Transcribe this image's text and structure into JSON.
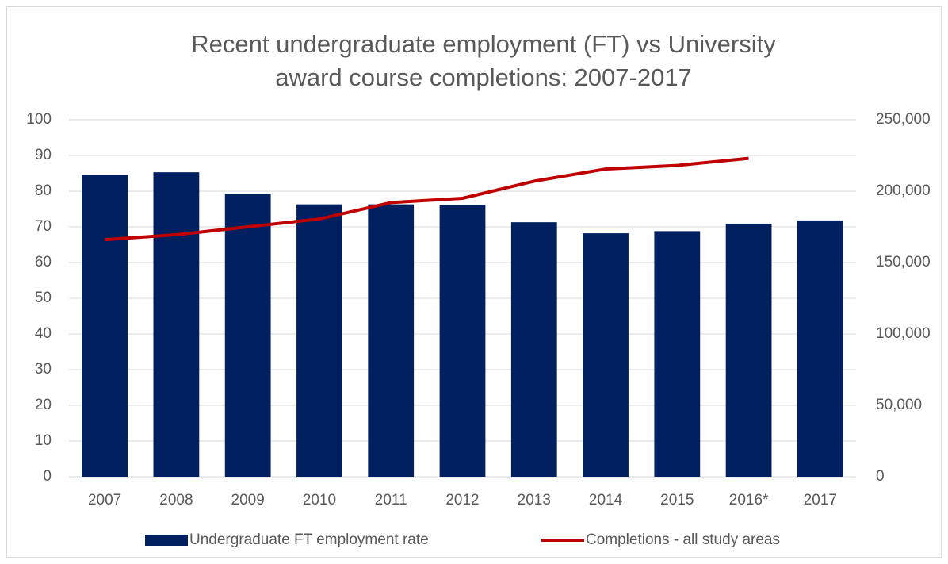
{
  "chart_data": {
    "type": "bar-line",
    "title": [
      "Recent undergraduate employment (FT) vs University",
      "award course completions: 2007-2017"
    ],
    "categories": [
      "2007",
      "2008",
      "2009",
      "2010",
      "2011",
      "2012",
      "2013",
      "2014",
      "2015",
      "2016*",
      "2017"
    ],
    "series": [
      {
        "name": "Undergraduate FT employment rate",
        "type": "bar",
        "color": "#002060",
        "values": [
          84.6,
          85.3,
          79.3,
          76.3,
          76.3,
          76.2,
          71.3,
          68.2,
          68.8,
          70.9,
          71.8
        ]
      },
      {
        "name": "Completions - all study areas",
        "type": "line",
        "axis": "y2",
        "color": "#c00000",
        "values": [
          166000,
          169500,
          175000,
          180500,
          192000,
          195000,
          207000,
          215500,
          218000,
          223000,
          null
        ]
      }
    ],
    "ylim": [
      0,
      100
    ],
    "yticks": [
      0,
      10,
      20,
      30,
      40,
      50,
      60,
      70,
      80,
      90,
      100
    ],
    "y2lim": [
      0,
      250000
    ],
    "y2ticks": [
      0,
      {
        "value": 50000,
        "label": "50,000"
      },
      {
        "value": 100000,
        "label": "100,000"
      },
      {
        "value": 150000,
        "label": "150,000"
      },
      {
        "value": 200000,
        "label": "200,000"
      },
      {
        "value": 250000,
        "label": "250,000"
      }
    ],
    "grid": true,
    "legend": "bottom"
  }
}
